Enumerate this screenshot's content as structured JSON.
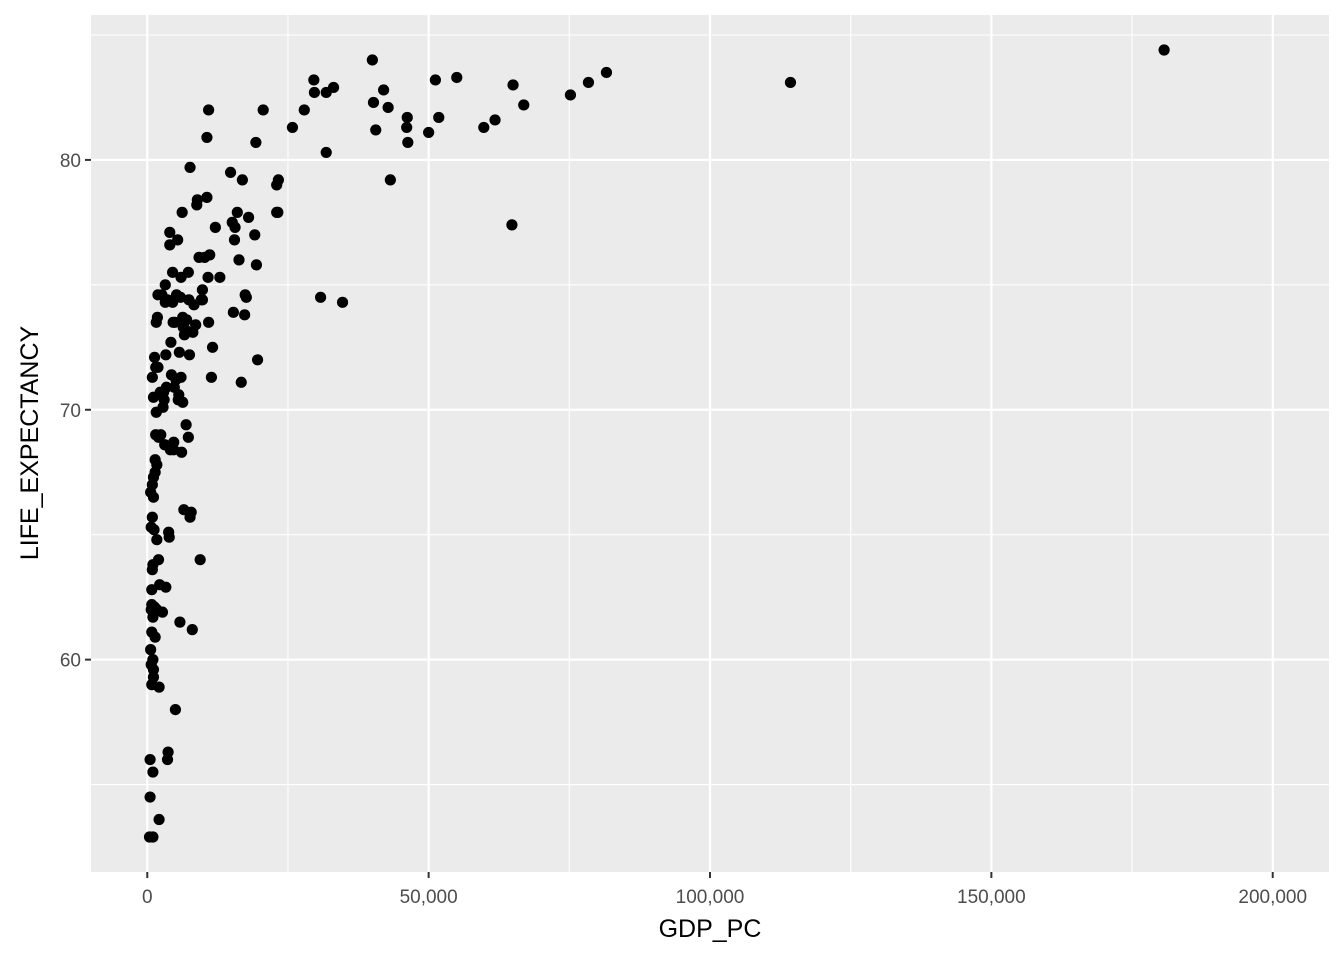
{
  "chart_data": {
    "type": "scatter",
    "title": "",
    "xlabel": "GDP_PC",
    "ylabel": "LIFE_EXPECTANCY",
    "xlim": [
      -10000,
      210000
    ],
    "ylim": [
      51.5,
      85.8
    ],
    "x_ticks": [
      0,
      50000,
      100000,
      150000,
      200000
    ],
    "x_tick_labels": [
      "0",
      "50,000",
      "100,000",
      "150,000",
      "200,000"
    ],
    "y_ticks": [
      60,
      70,
      80
    ],
    "y_tick_labels": [
      "60",
      "70",
      "80"
    ],
    "grid": true,
    "legend": "none",
    "colors": {
      "panel": "#ebebeb",
      "grid": "#ffffff",
      "point": "#000000"
    },
    "points": [
      [
        180700,
        84.4
      ],
      [
        114300,
        83.1
      ],
      [
        81600,
        83.5
      ],
      [
        78400,
        83.1
      ],
      [
        75200,
        82.6
      ],
      [
        66900,
        82.2
      ],
      [
        65000,
        83.0
      ],
      [
        64800,
        77.4
      ],
      [
        61800,
        81.6
      ],
      [
        59800,
        81.3
      ],
      [
        55000,
        83.3
      ],
      [
        51800,
        81.7
      ],
      [
        51200,
        83.2
      ],
      [
        50000,
        81.1
      ],
      [
        46200,
        81.7
      ],
      [
        46100,
        81.3
      ],
      [
        46300,
        80.7
      ],
      [
        42800,
        82.1
      ],
      [
        42000,
        82.8
      ],
      [
        43200,
        79.2
      ],
      [
        40600,
        81.2
      ],
      [
        40200,
        82.3
      ],
      [
        40000,
        84.0
      ],
      [
        34700,
        74.3
      ],
      [
        33100,
        82.9
      ],
      [
        31800,
        82.7
      ],
      [
        31800,
        80.3
      ],
      [
        30800,
        74.5
      ],
      [
        29600,
        83.2
      ],
      [
        29700,
        82.7
      ],
      [
        27900,
        82.0
      ],
      [
        25800,
        81.3
      ],
      [
        23300,
        79.2
      ],
      [
        23000,
        79.0
      ],
      [
        23200,
        77.9
      ],
      [
        23000,
        77.9
      ],
      [
        20600,
        82.0
      ],
      [
        19600,
        72.0
      ],
      [
        19300,
        80.7
      ],
      [
        19400,
        75.8
      ],
      [
        19100,
        77.0
      ],
      [
        18000,
        77.7
      ],
      [
        17600,
        74.5
      ],
      [
        17400,
        74.6
      ],
      [
        17300,
        73.8
      ],
      [
        16900,
        79.2
      ],
      [
        16700,
        71.1
      ],
      [
        16300,
        76.0
      ],
      [
        16000,
        77.9
      ],
      [
        15600,
        77.3
      ],
      [
        15500,
        76.8
      ],
      [
        15300,
        73.9
      ],
      [
        15100,
        77.5
      ],
      [
        14800,
        79.5
      ],
      [
        12900,
        75.3
      ],
      [
        12100,
        77.3
      ],
      [
        11600,
        72.5
      ],
      [
        11400,
        71.3
      ],
      [
        11100,
        76.2
      ],
      [
        10900,
        82.0
      ],
      [
        10900,
        73.5
      ],
      [
        10800,
        75.3
      ],
      [
        10600,
        80.9
      ],
      [
        10600,
        78.5
      ],
      [
        10200,
        76.1
      ],
      [
        9800,
        74.8
      ],
      [
        9800,
        74.4
      ],
      [
        9600,
        74.4
      ],
      [
        9400,
        64.0
      ],
      [
        9200,
        76.1
      ],
      [
        8900,
        78.4
      ],
      [
        8800,
        78.2
      ],
      [
        8600,
        73.4
      ],
      [
        8300,
        74.2
      ],
      [
        8100,
        73.1
      ],
      [
        8000,
        61.2
      ],
      [
        7800,
        65.9
      ],
      [
        7600,
        65.7
      ],
      [
        7600,
        79.7
      ],
      [
        7500,
        72.2
      ],
      [
        7400,
        74.4
      ],
      [
        7300,
        68.9
      ],
      [
        7300,
        75.5
      ],
      [
        7000,
        73.6
      ],
      [
        6900,
        69.4
      ],
      [
        6800,
        73.2
      ],
      [
        6600,
        73.0
      ],
      [
        6500,
        66.0
      ],
      [
        6400,
        73.3
      ],
      [
        6300,
        73.7
      ],
      [
        6200,
        77.9
      ],
      [
        6300,
        70.3
      ],
      [
        6100,
        68.3
      ],
      [
        6000,
        71.3
      ],
      [
        6000,
        75.3
      ],
      [
        5900,
        74.5
      ],
      [
        5800,
        61.5
      ],
      [
        5700,
        72.3
      ],
      [
        5600,
        70.6
      ],
      [
        5500,
        70.4
      ],
      [
        5400,
        76.8
      ],
      [
        5200,
        74.6
      ],
      [
        5100,
        71.2
      ],
      [
        5000,
        58.0
      ],
      [
        4900,
        73.5
      ],
      [
        4800,
        70.9
      ],
      [
        4700,
        68.4
      ],
      [
        4700,
        68.7
      ],
      [
        4600,
        73.5
      ],
      [
        4500,
        74.3
      ],
      [
        4500,
        75.5
      ],
      [
        4300,
        71.4
      ],
      [
        4200,
        72.7
      ],
      [
        4100,
        68.4
      ],
      [
        4000,
        76.6
      ],
      [
        4000,
        77.1
      ],
      [
        3900,
        64.9
      ],
      [
        3800,
        65.1
      ],
      [
        3700,
        56.3
      ],
      [
        3600,
        56.0
      ],
      [
        3600,
        74.4
      ],
      [
        3400,
        70.9
      ],
      [
        3300,
        72.2
      ],
      [
        3300,
        62.9
      ],
      [
        3200,
        75.0
      ],
      [
        3200,
        74.3
      ],
      [
        3100,
        68.6
      ],
      [
        3000,
        70.4
      ],
      [
        2900,
        70.7
      ],
      [
        2800,
        70.1
      ],
      [
        2700,
        61.9
      ],
      [
        2600,
        74.6
      ],
      [
        2400,
        69.0
      ],
      [
        2300,
        70.7
      ],
      [
        2200,
        63.0
      ],
      [
        2100,
        58.9
      ],
      [
        2100,
        53.6
      ],
      [
        2000,
        68.9
      ],
      [
        2000,
        64.0
      ],
      [
        1900,
        74.6
      ],
      [
        1900,
        71.7
      ],
      [
        1800,
        73.7
      ],
      [
        1700,
        67.8
      ],
      [
        1700,
        64.8
      ],
      [
        1700,
        62.0
      ],
      [
        1600,
        73.5
      ],
      [
        1600,
        69.9
      ],
      [
        1500,
        71.7
      ],
      [
        1500,
        69.0
      ],
      [
        1400,
        68.0
      ],
      [
        1400,
        67.5
      ],
      [
        1400,
        60.9
      ],
      [
        1300,
        72.1
      ],
      [
        1300,
        62.1
      ],
      [
        1200,
        65.2
      ],
      [
        1100,
        70.5
      ],
      [
        1100,
        59.6
      ],
      [
        1100,
        59.3
      ],
      [
        1100,
        67.3
      ],
      [
        1100,
        66.5
      ],
      [
        1000,
        63.8
      ],
      [
        1000,
        61.7
      ],
      [
        1000,
        60.0
      ],
      [
        1000,
        55.5
      ],
      [
        1000,
        52.9
      ],
      [
        900,
        71.3
      ],
      [
        900,
        67.0
      ],
      [
        900,
        65.7
      ],
      [
        900,
        63.6
      ],
      [
        800,
        62.8
      ],
      [
        800,
        62.2
      ],
      [
        800,
        61.1
      ],
      [
        800,
        59.0
      ],
      [
        700,
        65.3
      ],
      [
        700,
        62.0
      ],
      [
        700,
        59.8
      ],
      [
        600,
        66.7
      ],
      [
        600,
        60.4
      ],
      [
        500,
        56.0
      ],
      [
        500,
        54.5
      ],
      [
        400,
        52.9
      ]
    ]
  }
}
